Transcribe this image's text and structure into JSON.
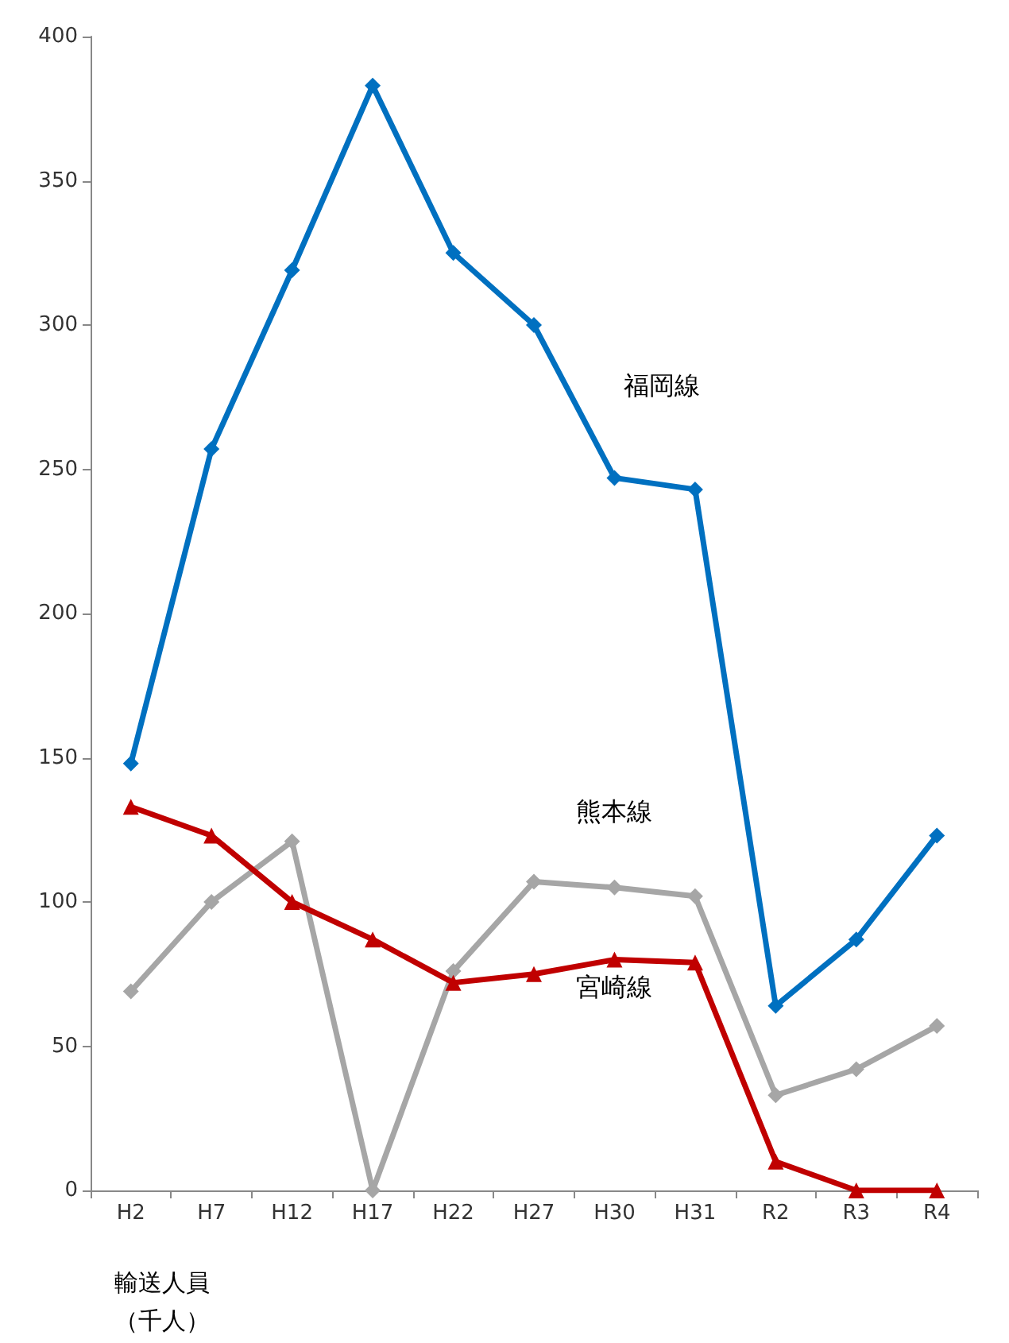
{
  "chart_data": {
    "type": "line",
    "annotations": [
      "輸送人員（千人）"
    ],
    "categories": [
      "H2",
      "H7",
      "H12",
      "H17",
      "H22",
      "H27",
      "H30",
      "H31",
      "R2",
      "R3",
      "R4"
    ],
    "series": [
      {
        "name": "福岡線",
        "color": "#0070c0",
        "marker": "diamond",
        "values": [
          148,
          257,
          319,
          383,
          325,
          300,
          247,
          243,
          64,
          87,
          123
        ]
      },
      {
        "name": "熊本線",
        "color": "#a6a6a6",
        "marker": "diamond",
        "values": [
          69,
          100,
          121,
          0,
          76,
          107,
          105,
          102,
          33,
          42,
          57
        ]
      },
      {
        "name": "宮崎線",
        "color": "#c00000",
        "marker": "triangle",
        "values": [
          133,
          123,
          100,
          87,
          72,
          75,
          80,
          79,
          10,
          0,
          0
        ]
      }
    ],
    "ylim": [
      0,
      400
    ],
    "yticks": [
      0,
      50,
      100,
      150,
      200,
      250,
      300,
      350,
      400
    ],
    "grid": false,
    "legend": false
  }
}
